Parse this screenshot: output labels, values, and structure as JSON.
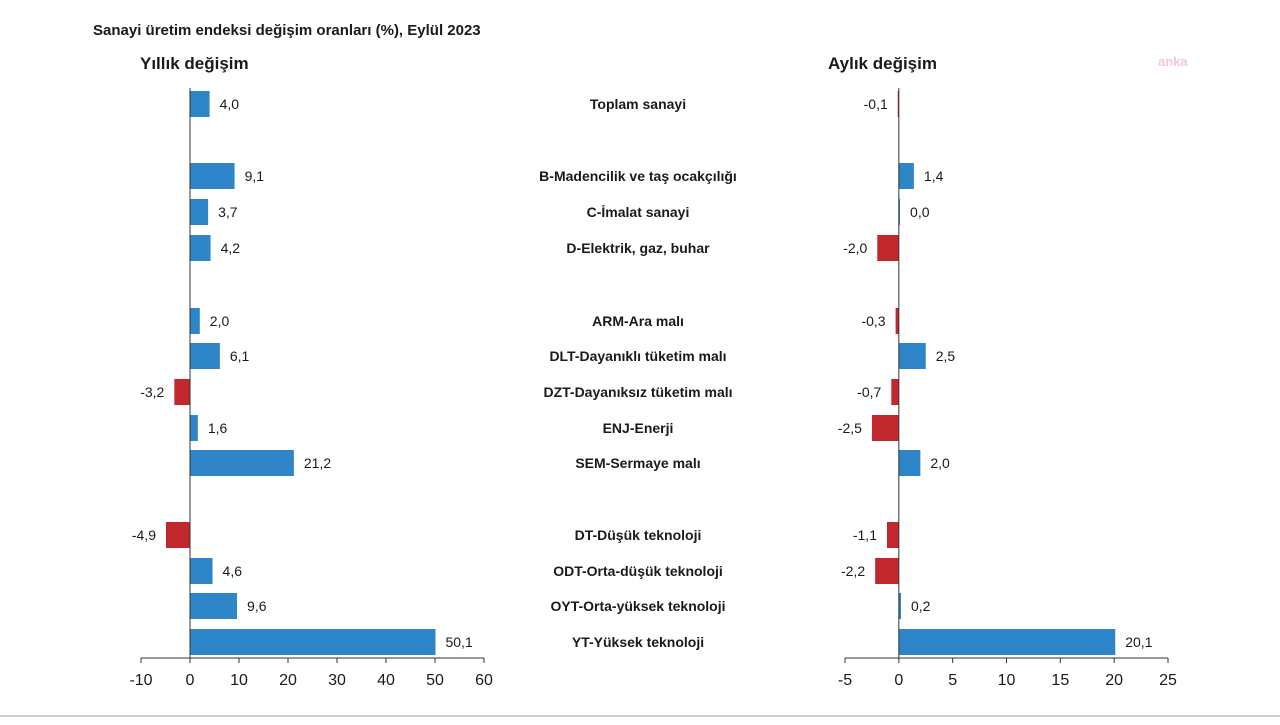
{
  "chart_data": {
    "type": "bar",
    "orientation": "horizontal",
    "title": "Sanayi üretim endeksi değişim oranları (%), Eylül 2023",
    "categories": [
      "Toplam sanayi",
      "B-Madencilik ve taş ocakçılığı",
      "C-İmalat sanayi",
      "D-Elektrik, gaz, buhar",
      "ARM-Ara malı",
      "DLT-Dayanıklı tüketim malı",
      "DZT-Dayanıksız tüketim malı",
      "ENJ-Enerji",
      "SEM-Sermaye malı",
      "DT-Düşük teknoloji",
      "ODT-Orta-düşük teknoloji",
      "OYT-Orta-yüksek teknoloji",
      "YT-Yüksek teknoloji"
    ],
    "groups": [
      [
        0
      ],
      [
        1,
        2,
        3
      ],
      [
        4,
        5,
        6,
        7,
        8
      ],
      [
        9,
        10,
        11,
        12
      ]
    ],
    "panels": [
      {
        "name": "Yıllık değişim",
        "values": [
          4.0,
          9.1,
          3.7,
          4.2,
          2.0,
          6.1,
          -3.2,
          1.6,
          21.2,
          -4.9,
          4.6,
          9.6,
          50.1
        ],
        "labels": [
          "4,0",
          "9,1",
          "3,7",
          "4,2",
          "2,0",
          "6,1",
          "-3,2",
          "1,6",
          "21,2",
          "-4,9",
          "4,6",
          "9,6",
          "50,1"
        ],
        "xlim": [
          -10,
          60
        ],
        "ticks": [
          -10,
          0,
          10,
          20,
          30,
          40,
          50,
          60
        ]
      },
      {
        "name": "Aylık değişim",
        "values": [
          -0.1,
          1.4,
          0.0,
          -2.0,
          -0.3,
          2.5,
          -0.7,
          -2.5,
          2.0,
          -1.1,
          -2.2,
          0.2,
          20.1
        ],
        "labels": [
          "-0,1",
          "1,4",
          "0,0",
          "-2,0",
          "-0,3",
          "2,5",
          "-0,7",
          "-2,5",
          "2,0",
          "-1,1",
          "-2,2",
          "0,2",
          "20,1"
        ],
        "xlim": [
          -5,
          25
        ],
        "ticks": [
          -5,
          0,
          5,
          10,
          15,
          20,
          25
        ]
      }
    ],
    "colors": {
      "positive": "#2e86c8",
      "negative": "#c0282e"
    },
    "grid": false,
    "watermark": "anka"
  }
}
